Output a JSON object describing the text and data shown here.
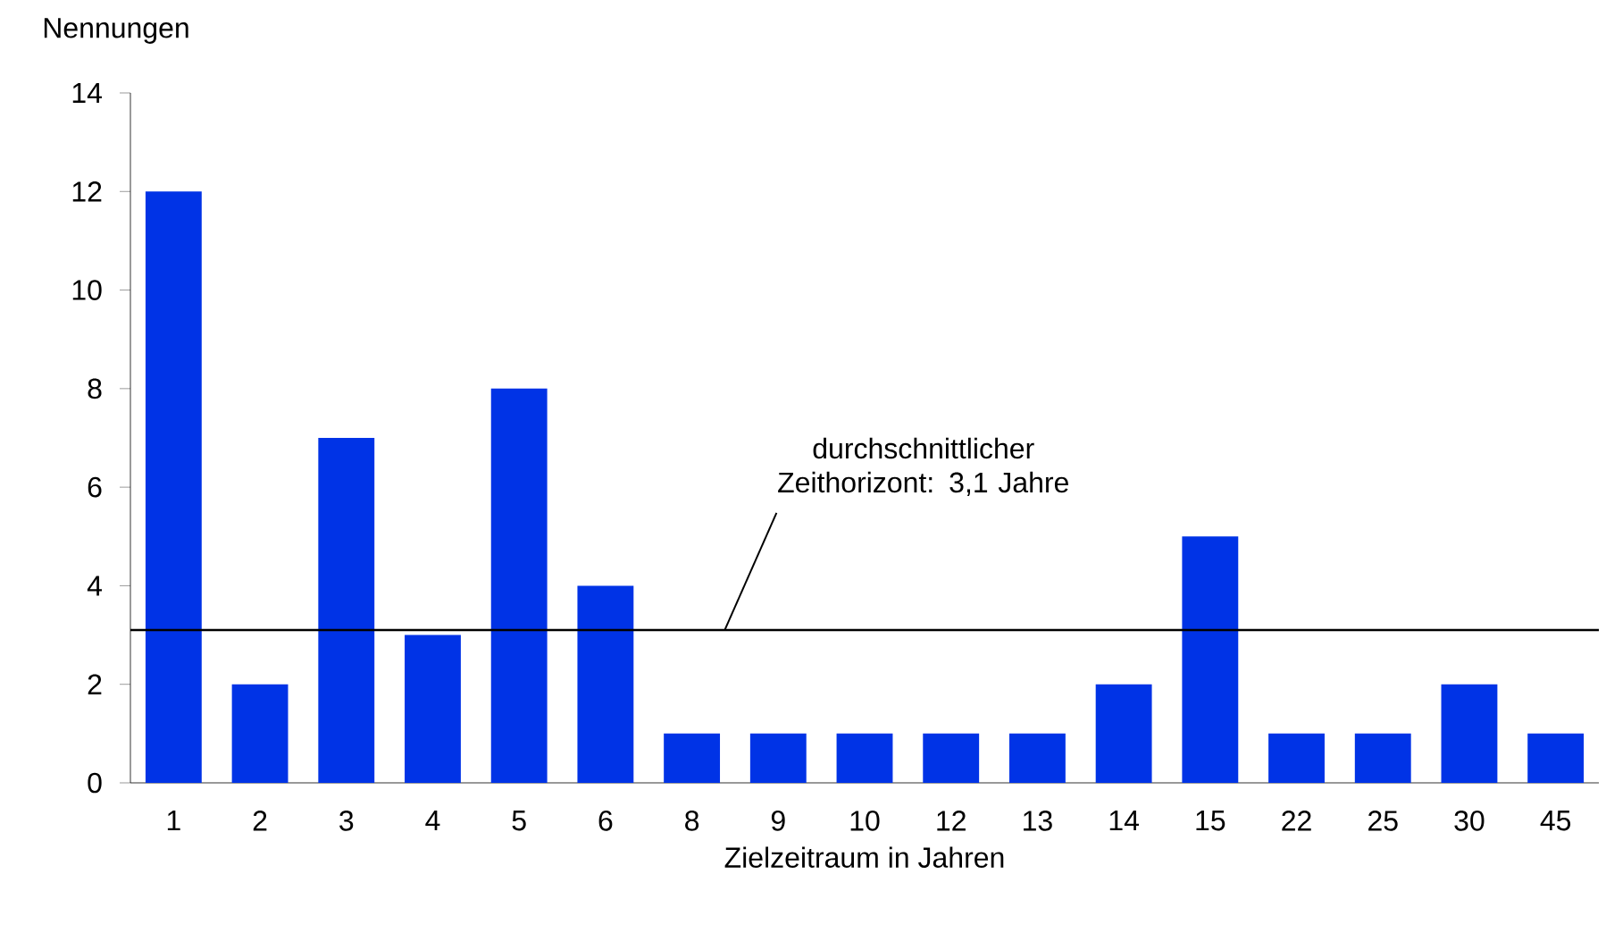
{
  "chart_data": {
    "type": "bar",
    "ylabel": "Nennungen",
    "xlabel": "Zielzeitraum in Jahren",
    "categories": [
      "1",
      "2",
      "3",
      "4",
      "5",
      "6",
      "8",
      "9",
      "10",
      "12",
      "13",
      "14",
      "15",
      "22",
      "25",
      "30",
      "45"
    ],
    "values": [
      12,
      2,
      7,
      3,
      8,
      4,
      1,
      1,
      1,
      1,
      1,
      2,
      5,
      1,
      1,
      2,
      1
    ],
    "color": "#0033e6",
    "ylim": [
      0,
      14
    ],
    "yticks": [
      0,
      2,
      4,
      6,
      8,
      10,
      12,
      14
    ],
    "ref_lines": [
      {
        "axis": "y",
        "value": 3.1,
        "label": "durchschnittlicher Zeithorizont: 3,1 Jahre",
        "color": "#000000"
      }
    ]
  }
}
